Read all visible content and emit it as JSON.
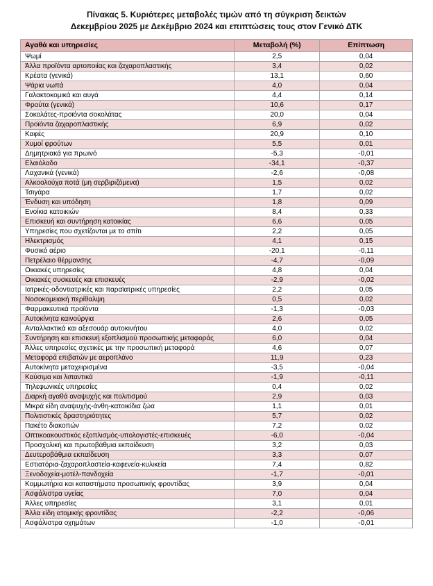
{
  "title": {
    "line1": "Πίνακας  5. Κυριότερες μεταβολές τιμών από τη σύγκριση δεικτών",
    "line2": "Δεκεμβρίου 2025 με Δεκέμβριο 2024 και επιπτώσεις τους στον Γενικό ΔΤΚ"
  },
  "colors": {
    "header_bg": "#e6b9b8",
    "row_even_bg": "#f2dcdb",
    "row_odd_bg": "#ffffff",
    "border": "#a6a6a6",
    "text": "#000000"
  },
  "table": {
    "columns": [
      {
        "key": "item",
        "label": "Αγαθά και υπηρεσίες"
      },
      {
        "key": "change",
        "label": "Μεταβολή (%)"
      },
      {
        "key": "impact",
        "label": "Επίπτωση"
      }
    ],
    "rows": [
      {
        "item": "Ψωμί",
        "change": "2,5",
        "impact": "0,04"
      },
      {
        "item": "Άλλα προϊόντα αρτοποιίας και ζαχαροπλαστικής",
        "change": "3,4",
        "impact": "0,02"
      },
      {
        "item": "Κρέατα (γενικά)",
        "change": "13,1",
        "impact": "0,60"
      },
      {
        "item": "Ψάρια νωπά",
        "change": "4,0",
        "impact": "0,04"
      },
      {
        "item": "Γαλακτοκομικά και αυγά",
        "change": "4,4",
        "impact": "0,14"
      },
      {
        "item": "Φρούτα (γενικά)",
        "change": "10,6",
        "impact": "0,17"
      },
      {
        "item": "Σοκολάτες-προϊόντα σοκολάτας",
        "change": "20,0",
        "impact": "0,04"
      },
      {
        "item": "Προϊόντα ζαχαροπλαστικής",
        "change": "6,9",
        "impact": "0,02"
      },
      {
        "item": "Καφές",
        "change": "20,9",
        "impact": "0,10"
      },
      {
        "item": "Χυμοί φρούτων",
        "change": "5,5",
        "impact": "0,01"
      },
      {
        "item": "Δημητριακά για πρωινό",
        "change": "-5,3",
        "impact": "-0,01"
      },
      {
        "item": "Ελαιόλαδο",
        "change": "-34,1",
        "impact": "-0,37"
      },
      {
        "item": "Λαχανικά (γενικά)",
        "change": "-2,6",
        "impact": "-0,08"
      },
      {
        "item": "Αλκοολούχα ποτά (μη σερβιριζόμενα)",
        "change": "1,5",
        "impact": "0,02"
      },
      {
        "item": "Τσιγάρα",
        "change": "1,7",
        "impact": "0,02"
      },
      {
        "item": "Ένδυση και υπόδηση",
        "change": "1,8",
        "impact": "0,09"
      },
      {
        "item": "Ενοίκια κατοικιών",
        "change": "8,4",
        "impact": "0,33"
      },
      {
        "item": "Επισκευή και συντήρηση κατοικίας",
        "change": "6,6",
        "impact": "0,05"
      },
      {
        "item": "Υπηρεσίες που σχετίζονται με το σπίτι",
        "change": "2,2",
        "impact": "0,05"
      },
      {
        "item": "Ηλεκτρισμός",
        "change": "4,1",
        "impact": "0,15"
      },
      {
        "item": "Φυσικό αέριο",
        "change": "-20,1",
        "impact": "-0,11"
      },
      {
        "item": "Πετρέλαιο θέρμανσης",
        "change": "-4,7",
        "impact": "-0,09"
      },
      {
        "item": "Οικιακές υπηρεσίες",
        "change": "4,8",
        "impact": "0,04"
      },
      {
        "item": "Οικιακές συσκευές και επισκευές",
        "change": "-2,9",
        "impact": "-0,02"
      },
      {
        "item": "Ιατρικές-οδοντιατρικές και παραϊατρικές υπηρεσίες",
        "change": "2,2",
        "impact": "0,05"
      },
      {
        "item": "Νοσοκομειακή περίθαλψη",
        "change": "0,5",
        "impact": "0,02"
      },
      {
        "item": "Φαρμακευτικά προϊόντα",
        "change": "-1,3",
        "impact": "-0,03"
      },
      {
        "item": "Αυτοκίνητα καινούργια",
        "change": "2,6",
        "impact": "0,05"
      },
      {
        "item": "Ανταλλακτικά και αξεσουάρ αυτοκινήτου",
        "change": "4,0",
        "impact": "0,02"
      },
      {
        "item": "Συντήρηση και επισκευή εξοπλισμού προσωπικής μεταφοράς",
        "change": "6,0",
        "impact": "0,04"
      },
      {
        "item": "Άλλες υπηρεσίες σχετικές με την προσωπική μεταφορά",
        "change": "4,6",
        "impact": "0,07"
      },
      {
        "item": "Μεταφορά επιβατών με αεροπλάνο",
        "change": "11,9",
        "impact": "0,23"
      },
      {
        "item": "Αυτοκίνητα μεταχειρισμένα",
        "change": "-3,5",
        "impact": "-0,04"
      },
      {
        "item": "Καύσιμα και λιπαντικά",
        "change": "-1,9",
        "impact": "-0,11"
      },
      {
        "item": "Τηλεφωνικές υπηρεσίες",
        "change": "0,4",
        "impact": "0,02"
      },
      {
        "item": "Διαρκή αγαθά αναψυχής και πολιτισμού",
        "change": "2,9",
        "impact": "0,03"
      },
      {
        "item": "Μικρά είδη αναψυχής-άνθη-κατοικίδια ζώα",
        "change": "1,1",
        "impact": "0,01"
      },
      {
        "item": "Πολιτιστικές δραστηριότητες",
        "change": "5,7",
        "impact": "0,02"
      },
      {
        "item": "Πακέτο διακοπών",
        "change": "7,2",
        "impact": "0,02"
      },
      {
        "item": "Οπτικοακουστικός εξοπλισμός-υπολογιστές-επισκευές",
        "change": "-6,0",
        "impact": "-0,04"
      },
      {
        "item": "Προσχολική και πρωτοβάθμια εκπαίδευση",
        "change": "3,2",
        "impact": "0,03"
      },
      {
        "item": "Δευτεροβάθμια εκπαίδευση",
        "change": "3,3",
        "impact": "0,07"
      },
      {
        "item": "Εστιατόρια-ζαχαροπλαστεία-καφενεία-κυλικεία",
        "change": "7,4",
        "impact": "0,82"
      },
      {
        "item": "Ξενοδοχεία-μοτέλ-πανδοχεία",
        "change": "-1,7",
        "impact": "-0,01"
      },
      {
        "item": "Κομμωτήρια και καταστήματα προσωπικής φροντίδας",
        "change": "3,9",
        "impact": "0,04"
      },
      {
        "item": "Ασφάλιστρα υγείας",
        "change": "7,0",
        "impact": "0,04"
      },
      {
        "item": "Άλλες υπηρεσίες",
        "change": "3,1",
        "impact": "0,01"
      },
      {
        "item": "Άλλα είδη ατομικής φροντίδας",
        "change": "-2,2",
        "impact": "-0,06"
      },
      {
        "item": "Ασφάλιστρα οχημάτων",
        "change": "-1,0",
        "impact": "-0,01"
      }
    ]
  }
}
